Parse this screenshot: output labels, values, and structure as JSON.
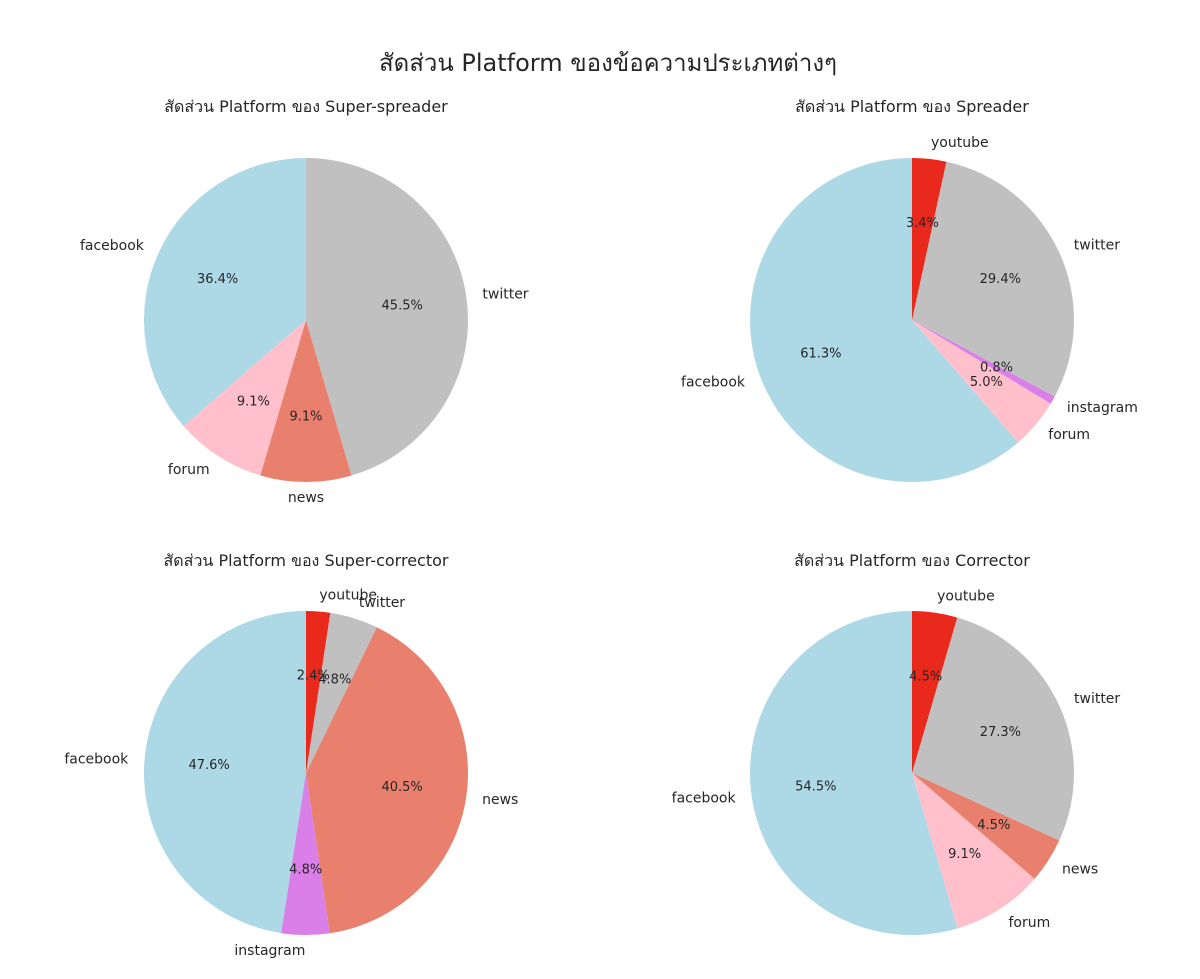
{
  "figure": {
    "title": "สัดส่วน Platform ของข้อความประเภทต่างๆ"
  },
  "colors": {
    "facebook": "#add8e6",
    "forum": "#ffc0cb",
    "news": "#e9806e",
    "twitter": "#c0c0c0",
    "youtube": "#e8291c",
    "instagram": "#da7fe7"
  },
  "chart_data": [
    {
      "type": "pie",
      "title": "สัดส่วน Platform ของ Super-spreader",
      "labels": [
        "facebook",
        "forum",
        "news",
        "twitter"
      ],
      "values": [
        36.4,
        9.1,
        9.1,
        45.5
      ],
      "value_labels": [
        "36.4%",
        "9.1%",
        "9.1%",
        "45.5%"
      ]
    },
    {
      "type": "pie",
      "title": "สัดส่วน Platform ของ Spreader",
      "labels": [
        "facebook",
        "forum",
        "instagram",
        "twitter",
        "youtube"
      ],
      "values": [
        61.3,
        5.0,
        0.8,
        29.4,
        3.4
      ],
      "value_labels": [
        "61.3%",
        "5.0%",
        "0.8%",
        "29.4%",
        "3.4%"
      ]
    },
    {
      "type": "pie",
      "title": "สัดส่วน Platform ของ Super-corrector",
      "labels": [
        "facebook",
        "instagram",
        "news",
        "twitter",
        "youtube"
      ],
      "values": [
        47.6,
        4.8,
        40.5,
        4.8,
        2.4
      ],
      "value_labels": [
        "47.6%",
        "4.8%",
        "40.5%",
        "4.8%",
        "2.4%"
      ]
    },
    {
      "type": "pie",
      "title": "สัดส่วน Platform ของ Corrector",
      "labels": [
        "facebook",
        "forum",
        "news",
        "twitter",
        "youtube"
      ],
      "values": [
        54.5,
        9.1,
        4.5,
        27.3,
        4.5
      ],
      "value_labels": [
        "54.5%",
        "9.1%",
        "4.5%",
        "27.3%",
        "4.5%"
      ]
    }
  ]
}
